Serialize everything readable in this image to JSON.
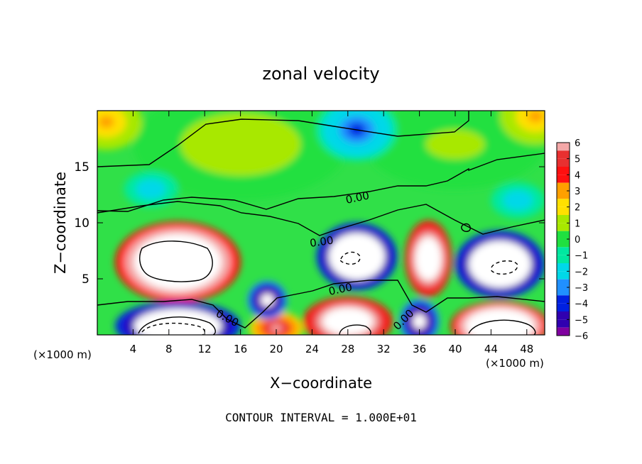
{
  "chart_data": {
    "type": "heatmap",
    "title": "zonal velocity",
    "xlabel": "X−coordinate",
    "ylabel": "Z−coordinate",
    "x_unit_left": "(×1000 m)",
    "x_unit_right": "(×1000 m)",
    "xlim": [
      0,
      50
    ],
    "ylim": [
      0,
      20
    ],
    "x_ticks": [
      4,
      8,
      12,
      16,
      20,
      24,
      28,
      32,
      36,
      40,
      44,
      48
    ],
    "y_ticks": [
      5,
      10,
      15
    ],
    "colorbar": {
      "ticks": [
        6,
        5,
        4,
        3,
        2,
        1,
        0,
        -1,
        -2,
        -3,
        -4,
        -5,
        -6
      ],
      "tick_labels": [
        "6",
        "5",
        "4",
        "3",
        "2",
        "1",
        "0",
        "−1",
        "−2",
        "−3",
        "−4",
        "−5",
        "−6"
      ],
      "colors": [
        "#f4a8a8",
        "#e83030",
        "#ff1010",
        "#ffa000",
        "#ffe000",
        "#a8e800",
        "#20e040",
        "#00e8a0",
        "#00d8e8",
        "#2090ff",
        "#0020e0",
        "#3000b0",
        "#8000a0"
      ]
    },
    "contour_labels": [
      "0.00",
      "0.00",
      "0.00",
      "0.00",
      "0.00"
    ],
    "footer": "CONTOUR INTERVAL = 1.000E+01",
    "regions": [
      {
        "cx": 9,
        "cy": 6.5,
        "rx": 7,
        "ry": 3.6,
        "v": 12
      },
      {
        "cx": 29,
        "cy": 7,
        "rx": 4.5,
        "ry": 3,
        "v": -12
      },
      {
        "cx": 45,
        "cy": 6.3,
        "rx": 5,
        "ry": 3,
        "v": -12
      },
      {
        "cx": 37,
        "cy": 6.8,
        "rx": 2.6,
        "ry": 3.4,
        "v": 10
      },
      {
        "cx": 9,
        "cy": 0.8,
        "rx": 7,
        "ry": 2.2,
        "v": -12
      },
      {
        "cx": 45,
        "cy": 0.8,
        "rx": 5.5,
        "ry": 2.2,
        "v": 12
      },
      {
        "cx": 28,
        "cy": 1.2,
        "rx": 5,
        "ry": 2.2,
        "v": 10
      },
      {
        "cx": 19,
        "cy": 3.1,
        "rx": 2.2,
        "ry": 1.7,
        "v": -8
      },
      {
        "cx": 36,
        "cy": 1.2,
        "rx": 2.2,
        "ry": 2.0,
        "v": -8
      },
      {
        "cx": 20,
        "cy": 0.6,
        "rx": 3,
        "ry": 1.5,
        "v": 6
      },
      {
        "cx": 29,
        "cy": 18.3,
        "rx": 4.5,
        "ry": 2.8,
        "v": -3.6
      },
      {
        "cx": 6,
        "cy": 13,
        "rx": 3,
        "ry": 1.6,
        "v": -2.4
      },
      {
        "cx": 47,
        "cy": 12,
        "rx": 3,
        "ry": 1.6,
        "v": -2.4
      },
      {
        "cx": 1,
        "cy": 19,
        "rx": 4,
        "ry": 2.5,
        "v": 2.6
      },
      {
        "cx": 49,
        "cy": 19.5,
        "rx": 4,
        "ry": 2.5,
        "v": 2.6
      },
      {
        "cx": 16,
        "cy": 17,
        "rx": 12,
        "ry": 5,
        "v": 0.8
      },
      {
        "cx": 40,
        "cy": 17,
        "rx": 10,
        "ry": 4,
        "v": 0.6
      }
    ]
  }
}
